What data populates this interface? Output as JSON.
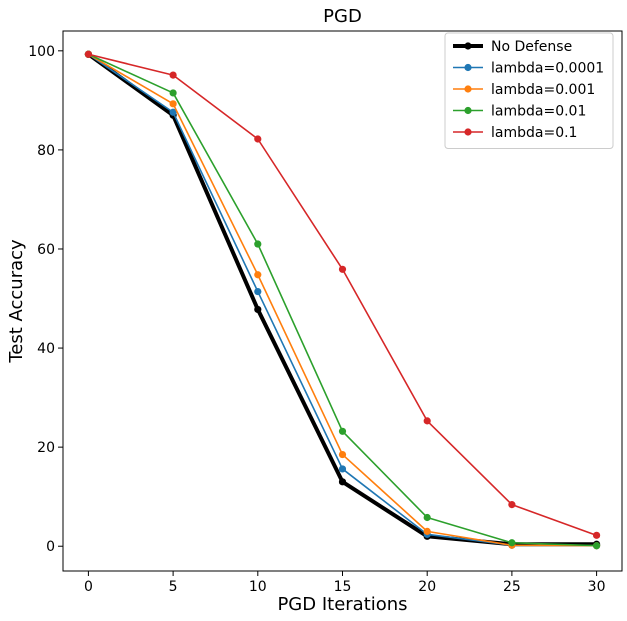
{
  "chart_data": {
    "type": "line",
    "title": "PGD",
    "xlabel": "PGD Iterations",
    "ylabel": "Test Accuracy",
    "x": [
      0,
      5,
      10,
      15,
      20,
      25,
      30
    ],
    "xticks": [
      0,
      5,
      10,
      15,
      20,
      25,
      30
    ],
    "yticks": [
      0,
      20,
      40,
      60,
      80,
      100
    ],
    "xlim": [
      -1.5,
      31.5
    ],
    "ylim": [
      -5,
      104
    ],
    "grid": false,
    "legend_position": "top-right",
    "series": [
      {
        "name": "No Defense",
        "color": "#000000",
        "emphasis": true,
        "values": [
          99.3,
          87.0,
          47.8,
          13.0,
          2.0,
          0.4,
          0.4
        ]
      },
      {
        "name": "lambda=0.0001",
        "color": "#1f77b4",
        "values": [
          99.3,
          87.6,
          51.4,
          15.6,
          2.4,
          0.2,
          0.1
        ]
      },
      {
        "name": "lambda=0.001",
        "color": "#ff7f0e",
        "values": [
          99.3,
          89.3,
          54.8,
          18.5,
          3.0,
          0.2,
          0.1
        ]
      },
      {
        "name": "lambda=0.01",
        "color": "#2ca02c",
        "values": [
          99.3,
          91.5,
          61.0,
          23.2,
          5.8,
          0.7,
          0.1
        ]
      },
      {
        "name": "lambda=0.1",
        "color": "#d62728",
        "values": [
          99.3,
          95.1,
          82.2,
          55.9,
          25.3,
          8.4,
          2.2
        ]
      }
    ]
  }
}
